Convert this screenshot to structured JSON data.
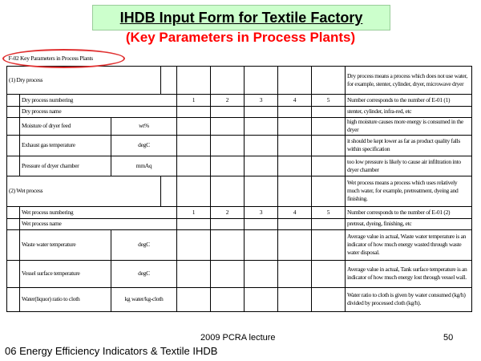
{
  "slide": {
    "title": "IHDB Input Form for Textile Factory",
    "subtitle": "(Key Parameters in Process Plants)",
    "lecture": "2009 PCRA lecture",
    "page_number": "50",
    "footer": "06 Energy Efficiency Indicators & Textile IHDB"
  },
  "form": {
    "header": "F-02  Key Parameters in Process Plants",
    "dry": {
      "section_label": "(1) Dry process",
      "section_note": "Dry process means a process which does not use water, for example, stenter, cylinder, dryer, microwave dryer",
      "numbering_label": "Dry process numbering",
      "numbers": [
        "1",
        "2",
        "3",
        "4",
        "5"
      ],
      "numbering_note": "Number corresponds to the number of E-01 (1)",
      "name_label": "Dry process name",
      "name_note": "stenter, cylinder, infra-red, etc",
      "params": [
        {
          "label": "Moisture of dryer feed",
          "unit": "wt%",
          "note": "high moisture causes more energy is consumed in the dryer"
        },
        {
          "label": "Exhaust gas temperature",
          "unit": "degC",
          "note": "it should be kept lower as far as product quality falls within specification"
        },
        {
          "label": "Pressure of dryer chamber",
          "unit": "mmAq",
          "note": "too low pressure is likely to cause air infiltration into dryer chamber"
        }
      ]
    },
    "wet": {
      "section_label": "(2) Wet process",
      "section_note": "Wet process means a process which uses relatively much water, for example, pretreatment, dyeing and finishing.",
      "numbering_label": "Wet process numbering",
      "numbers": [
        "1",
        "2",
        "3",
        "4",
        "5"
      ],
      "numbering_note": "Number corresponds to the number of E-01 (2)",
      "name_label": "Wet process name",
      "name_note": "pretreat, dyeing, finishing, etc",
      "params": [
        {
          "label": "Waste water temperature",
          "unit": "degC",
          "note": "Average value in actual, Waste water temperature is an indicator of how much energy wasted through waste water disposal."
        },
        {
          "label": "Vessel surface temperature",
          "unit": "degC",
          "note": "Average value in actual, Tank surface temperature is an indicator of how much energy lost through vessel wall."
        },
        {
          "label": "Water(liquor) ratio to cloth",
          "unit": "kg water/kg-cloth",
          "note": "Water ratio to cloth is given by water consumed (kg/h) divided by processed cloth (kg/h)."
        }
      ]
    }
  }
}
